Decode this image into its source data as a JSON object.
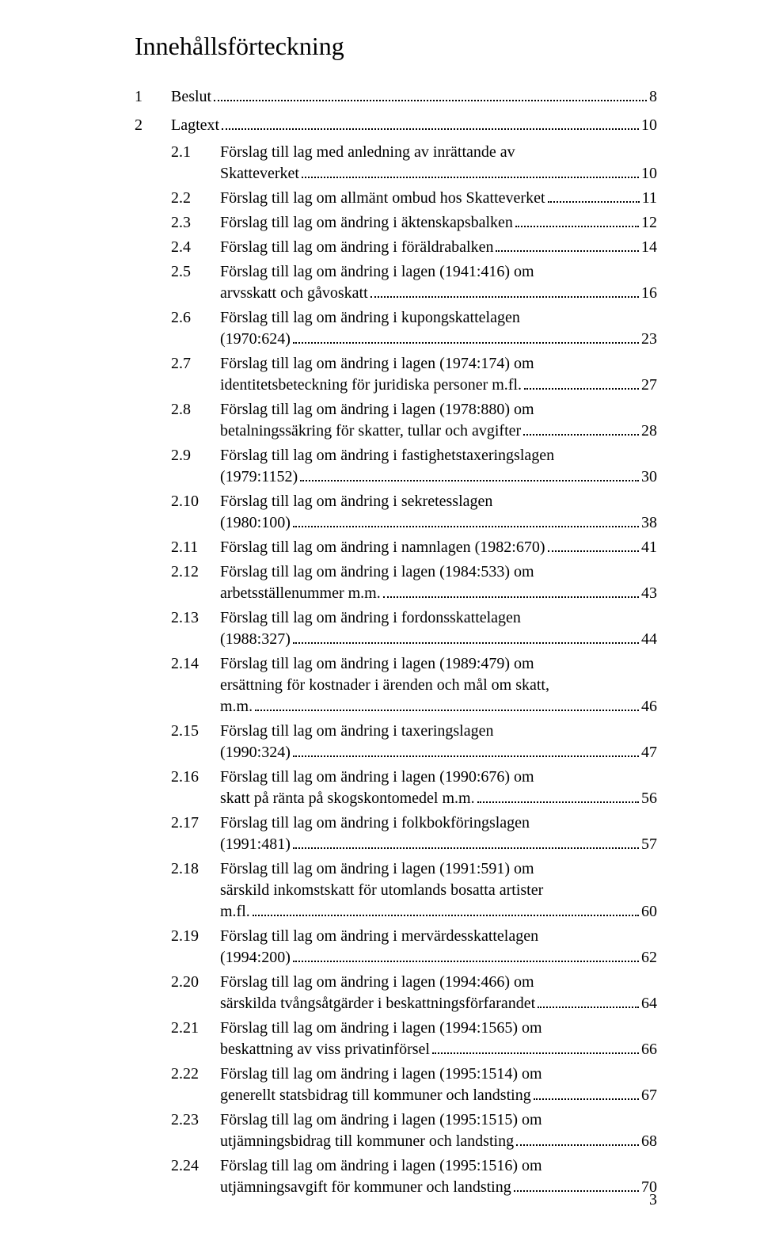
{
  "title": "Innehållsförteckning",
  "pageNumber": "3",
  "topEntries": [
    {
      "num": "1",
      "label": "Beslut",
      "page": "8"
    },
    {
      "num": "2",
      "label": "Lagtext",
      "page": "10"
    }
  ],
  "subEntries": [
    {
      "num": "2.1",
      "lines": [
        "Förslag till lag med anledning av inrättande av"
      ],
      "last": "Skatteverket",
      "page": "10"
    },
    {
      "num": "2.2",
      "lines": [],
      "last": "Förslag till lag om allmänt ombud hos Skatteverket",
      "page": "11"
    },
    {
      "num": "2.3",
      "lines": [],
      "last": "Förslag till lag om ändring i äktenskapsbalken",
      "page": "12"
    },
    {
      "num": "2.4",
      "lines": [],
      "last": "Förslag till lag om ändring i föräldrabalken",
      "page": "14"
    },
    {
      "num": "2.5",
      "lines": [
        "Förslag till lag om ändring i lagen (1941:416) om"
      ],
      "last": "arvsskatt och gåvoskatt",
      "page": "16"
    },
    {
      "num": "2.6",
      "lines": [
        "Förslag till lag om ändring i kupongskattelagen"
      ],
      "last": "(1970:624)",
      "page": "23"
    },
    {
      "num": "2.7",
      "lines": [
        "Förslag till lag om ändring i lagen (1974:174) om"
      ],
      "last": "identitetsbeteckning för juridiska personer m.fl. ",
      "page": "27"
    },
    {
      "num": "2.8",
      "lines": [
        "Förslag till lag om ändring i lagen (1978:880) om"
      ],
      "last": "betalningssäkring för skatter, tullar och avgifter",
      "page": "28"
    },
    {
      "num": "2.9",
      "lines": [
        "Förslag till lag om ändring i fastighetstaxeringslagen"
      ],
      "last": "(1979:1152)",
      "page": "30"
    },
    {
      "num": "2.10",
      "lines": [
        "Förslag till lag om ändring i sekretesslagen"
      ],
      "last": "(1980:100)",
      "page": "38"
    },
    {
      "num": "2.11",
      "lines": [],
      "last": "Förslag till lag om ändring i namnlagen (1982:670) ",
      "page": "41"
    },
    {
      "num": "2.12",
      "lines": [
        "Förslag till lag om ändring i lagen (1984:533) om"
      ],
      "last": "arbetsställenummer m.m.",
      "page": "43"
    },
    {
      "num": "2.13",
      "lines": [
        "Förslag till lag om ändring i fordonsskattelagen"
      ],
      "last": "(1988:327)",
      "page": "44"
    },
    {
      "num": "2.14",
      "lines": [
        "Förslag till lag om ändring i lagen (1989:479) om",
        "ersättning för kostnader i ärenden och mål om skatt,"
      ],
      "last": "m.m. ",
      "page": "46"
    },
    {
      "num": "2.15",
      "lines": [
        "Förslag till lag om ändring i taxeringslagen"
      ],
      "last": "(1990:324)",
      "page": "47"
    },
    {
      "num": "2.16",
      "lines": [
        "Förslag till lag om ändring i lagen (1990:676) om"
      ],
      "last": "skatt på ränta på skogskontomedel m.m. ",
      "page": "56"
    },
    {
      "num": "2.17",
      "lines": [
        "Förslag till lag om ändring i folkbokföringslagen"
      ],
      "last": "(1991:481)",
      "page": "57"
    },
    {
      "num": "2.18",
      "lines": [
        "Förslag till lag om ändring i lagen (1991:591) om",
        "särskild inkomstskatt för utomlands bosatta artister"
      ],
      "last": "m.fl.",
      "page": "60"
    },
    {
      "num": "2.19",
      "lines": [
        "Förslag till lag om ändring i mervärdesskattelagen"
      ],
      "last": "(1994:200)",
      "page": "62"
    },
    {
      "num": "2.20",
      "lines": [
        "Förslag till lag om ändring i lagen (1994:466) om"
      ],
      "last": "särskilda tvångsåtgärder i beskattningsförfarandet",
      "page": "64"
    },
    {
      "num": "2.21",
      "lines": [
        "Förslag till lag om ändring i lagen (1994:1565) om"
      ],
      "last": "beskattning av viss privatinförsel",
      "page": "66"
    },
    {
      "num": "2.22",
      "lines": [
        "Förslag till lag om ändring i lagen (1995:1514) om"
      ],
      "last": "generellt statsbidrag till kommuner och landsting",
      "page": "67"
    },
    {
      "num": "2.23",
      "lines": [
        "Förslag till lag om ändring i lagen (1995:1515) om"
      ],
      "last": "utjämningsbidrag till kommuner och landsting",
      "page": "68"
    },
    {
      "num": "2.24",
      "lines": [
        "Förslag till lag om ändring i lagen (1995:1516) om"
      ],
      "last": "utjämningsavgift för kommuner och landsting",
      "page": "70"
    }
  ]
}
